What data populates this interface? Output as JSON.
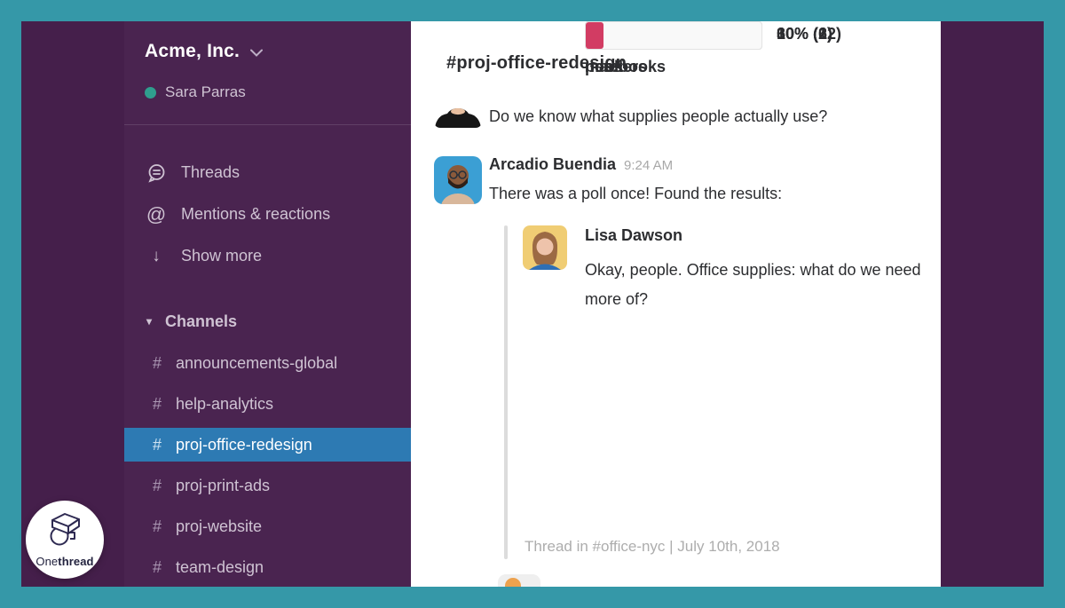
{
  "colors": {
    "frame_teal": "#3598a8",
    "outer_purple": "#451f4b",
    "sidebar_purple": "#4a2450",
    "selected_blue": "#2d7ab3",
    "poll_pink": "#d23c63",
    "presence_green": "#2f9e8e"
  },
  "sidebar": {
    "workspace_name": "Acme, Inc.",
    "user_name": "Sara Parras",
    "nav": [
      {
        "icon": "threads-icon",
        "label": "Threads"
      },
      {
        "icon": "mention-icon",
        "label": "Mentions & reactions"
      },
      {
        "icon": "arrow-down-icon",
        "label": "Show more"
      }
    ],
    "mention_glyph": "@",
    "arrow_glyph": "↓",
    "triangle_glyph": "▾",
    "channels_header": "Channels",
    "hash": "#",
    "channels": [
      {
        "name": "announcements-global",
        "selected": false
      },
      {
        "name": "help-analytics",
        "selected": false
      },
      {
        "name": "proj-office-redesign",
        "selected": true
      },
      {
        "name": "proj-print-ads",
        "selected": false
      },
      {
        "name": "proj-website",
        "selected": false
      },
      {
        "name": "team-design",
        "selected": false
      }
    ]
  },
  "main": {
    "channel_title": "#proj-office-redesign",
    "previous_message_text": "Do we know what supplies people actually use?",
    "message": {
      "author": "Arcadio Buendia",
      "time": "9:24 AM",
      "text": "There was a poll once! Found the results:"
    },
    "quoted": {
      "author": "Lisa Dawson",
      "text": "Okay, people. Office supplies: what do we need more of?",
      "footer": "Thread in #office-nyc | July 10th, 2018"
    },
    "poll": {
      "options": [
        {
          "label": "notebooks",
          "percent": 30,
          "votes": 6,
          "display": "30% (6)"
        },
        {
          "label": "pens",
          "percent": 60,
          "votes": 12,
          "display": "60% (12)"
        },
        {
          "label": "markers",
          "percent": 10,
          "votes": 2,
          "display": "10% (2)"
        }
      ]
    }
  },
  "watermark": {
    "prefix": "One",
    "suffix": "thread"
  }
}
